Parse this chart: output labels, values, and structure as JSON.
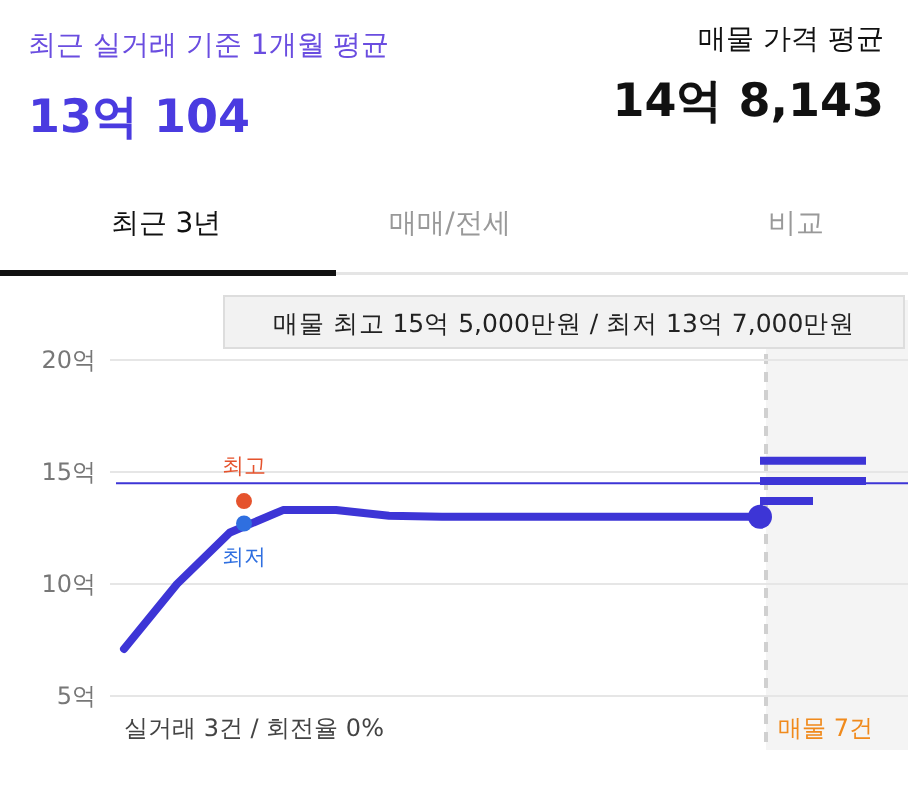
{
  "chart_data": {
    "type": "line",
    "title": "최근 실거래 기준 1개월 평균",
    "subtitle": "13억 104",
    "categories": [
      null,
      null,
      null,
      null,
      null,
      null,
      null,
      null,
      null,
      null,
      null,
      null,
      null,
      null,
      null
    ],
    "ylim": [
      5,
      20
    ],
    "yticks": [
      {
        "value": 5,
        "label": "5억"
      },
      {
        "value": 10,
        "label": "10억"
      },
      {
        "value": 15,
        "label": "15억"
      },
      {
        "value": 20,
        "label": "20억"
      }
    ],
    "grid": "y",
    "series": [
      {
        "type": "line",
        "color": "#3d35d6",
        "values": [
          7.1,
          10.0,
          12.3,
          13.3,
          13.3,
          13.05,
          13.0,
          13.0,
          13.0,
          13.0,
          13.0,
          13.0,
          13.0,
          null,
          null
        ]
      },
      {
        "type": "line",
        "color": "#3d35d6",
        "values": [
          null,
          null,
          null,
          null,
          null,
          null,
          null,
          null,
          null,
          null,
          null,
          null,
          15.5,
          15.5,
          15.5
        ]
      },
      {
        "type": "line",
        "color": "#3d35d6",
        "values": [
          null,
          null,
          null,
          null,
          null,
          null,
          null,
          null,
          null,
          null,
          null,
          null,
          14.6,
          14.6,
          14.6
        ]
      },
      {
        "type": "line",
        "color": "#3d35d6",
        "values": [
          null,
          null,
          null,
          null,
          null,
          null,
          null,
          null,
          null,
          null,
          null,
          null,
          13.7,
          13.7,
          null
        ]
      }
    ],
    "ref_lines": [
      {
        "axis": "y",
        "value": 14.5,
        "color": "#3d35d6"
      }
    ],
    "annotations": [
      {
        "text": "최고",
        "y": 13.7
      },
      {
        "text": "최저",
        "y": 12.7
      },
      "매물 가격 평균",
      "14억 8,143",
      "최근 3년",
      "매매/전세",
      "비교",
      "매물 최고 15억 5,000만원 / 최저 13억 7,000만원",
      "실거래 3건 / 회전율 0%",
      "매물 7건"
    ]
  }
}
